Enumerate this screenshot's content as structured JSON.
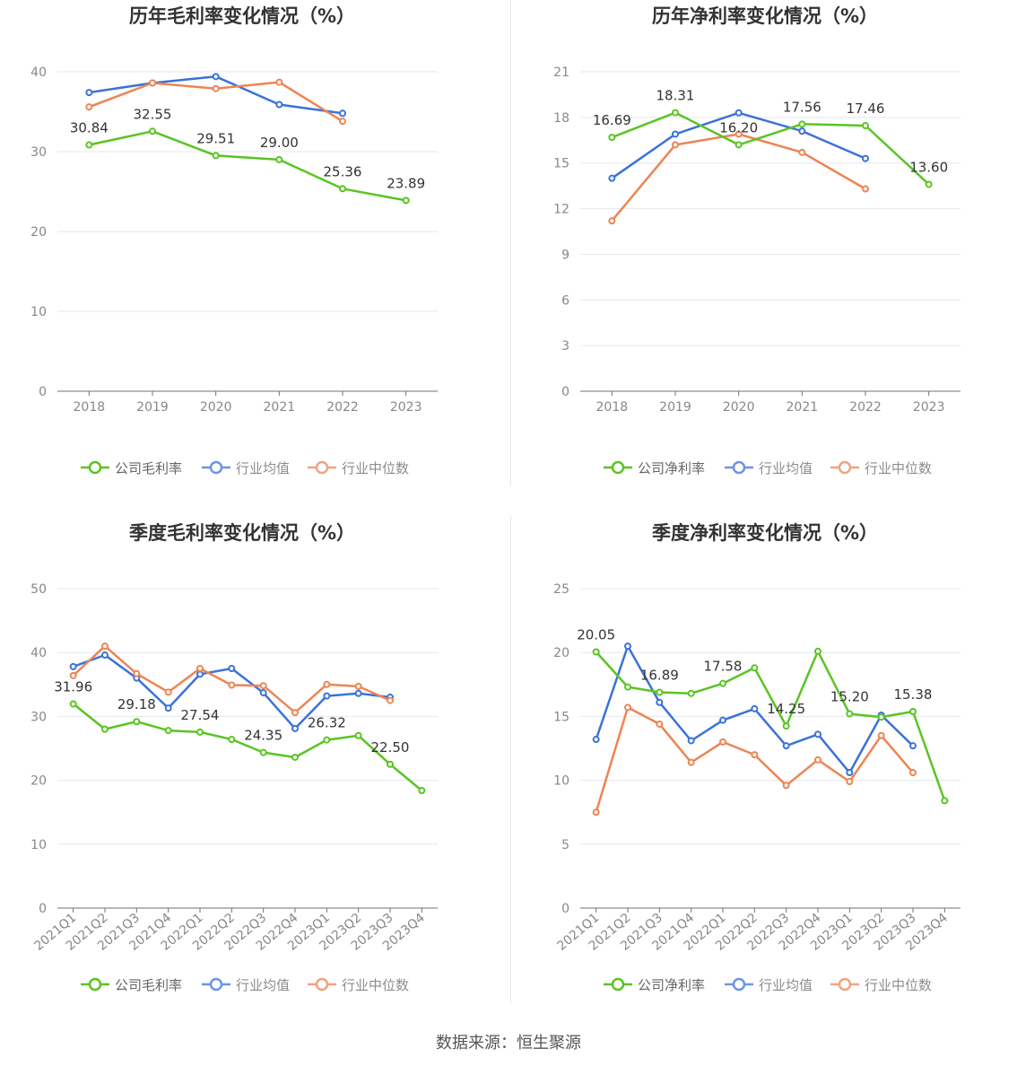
{
  "source": "数据来源：恒生聚源",
  "colors": {
    "company": "#5ac423",
    "avg": "#3b72d9",
    "median": "#ee8454"
  },
  "chart_data": [
    {
      "id": "annual-gross",
      "type": "line",
      "title": "历年毛利率变化情况（%）",
      "categories": [
        "2018",
        "2019",
        "2020",
        "2021",
        "2022",
        "2023"
      ],
      "yticks": [
        0,
        10,
        20,
        30,
        40
      ],
      "ylim": [
        0,
        40
      ],
      "xlabel_rotate": false,
      "series": [
        {
          "name": "公司毛利率",
          "key": "company",
          "values": [
            30.84,
            32.55,
            29.51,
            29.0,
            25.36,
            23.89
          ]
        },
        {
          "name": "行业均值",
          "key": "avg",
          "values": [
            37.4,
            38.6,
            39.4,
            35.9,
            34.8,
            null
          ]
        },
        {
          "name": "行业中位数",
          "key": "median",
          "values": [
            35.6,
            38.6,
            37.9,
            38.7,
            33.8,
            null
          ]
        }
      ],
      "labels": [
        {
          "i": 0,
          "text": "30.84"
        },
        {
          "i": 1,
          "text": "32.55"
        },
        {
          "i": 2,
          "text": "29.51"
        },
        {
          "i": 3,
          "text": "29.00"
        },
        {
          "i": 4,
          "text": "25.36"
        },
        {
          "i": 5,
          "text": "23.89"
        }
      ]
    },
    {
      "id": "annual-net",
      "type": "line",
      "title": "历年净利率变化情况（%）",
      "categories": [
        "2018",
        "2019",
        "2020",
        "2021",
        "2022",
        "2023"
      ],
      "yticks": [
        0,
        3,
        6,
        9,
        12,
        15,
        18,
        21
      ],
      "ylim": [
        0,
        21
      ],
      "xlabel_rotate": false,
      "series": [
        {
          "name": "公司净利率",
          "key": "company",
          "values": [
            16.69,
            18.31,
            16.2,
            17.56,
            17.46,
            13.6
          ]
        },
        {
          "name": "行业均值",
          "key": "avg",
          "values": [
            14.0,
            16.9,
            18.3,
            17.1,
            15.3,
            null
          ]
        },
        {
          "name": "行业中位数",
          "key": "median",
          "values": [
            11.2,
            16.2,
            16.9,
            15.7,
            13.3,
            null
          ]
        }
      ],
      "labels": [
        {
          "i": 0,
          "text": "16.69"
        },
        {
          "i": 1,
          "text": "18.31"
        },
        {
          "i": 2,
          "text": "16.20"
        },
        {
          "i": 3,
          "text": "17.56"
        },
        {
          "i": 4,
          "text": "17.46"
        },
        {
          "i": 5,
          "text": "13.60"
        }
      ]
    },
    {
      "id": "quarter-gross",
      "type": "line",
      "title": "季度毛利率变化情况（%）",
      "categories": [
        "2021Q1",
        "2021Q2",
        "2021Q3",
        "2021Q4",
        "2022Q1",
        "2022Q2",
        "2022Q3",
        "2022Q4",
        "2023Q1",
        "2023Q2",
        "2023Q3",
        "2023Q4"
      ],
      "yticks": [
        0,
        10,
        20,
        30,
        40,
        50
      ],
      "ylim": [
        0,
        50
      ],
      "xlabel_rotate": true,
      "series": [
        {
          "name": "公司毛利率",
          "key": "company",
          "values": [
            31.96,
            28.0,
            29.18,
            27.8,
            27.54,
            26.4,
            24.35,
            23.6,
            26.32,
            27.0,
            22.5,
            18.4
          ]
        },
        {
          "name": "行业均值",
          "key": "avg",
          "values": [
            37.8,
            39.6,
            36.0,
            31.3,
            36.6,
            37.5,
            33.7,
            28.1,
            33.2,
            33.6,
            33.0,
            null
          ]
        },
        {
          "name": "行业中位数",
          "key": "median",
          "values": [
            36.4,
            41.0,
            36.7,
            33.8,
            37.5,
            34.9,
            34.8,
            30.6,
            35.0,
            34.7,
            32.5,
            null
          ]
        }
      ],
      "labels": [
        {
          "i": 0,
          "text": "31.96"
        },
        {
          "i": 2,
          "text": "29.18"
        },
        {
          "i": 4,
          "text": "27.54"
        },
        {
          "i": 6,
          "text": "24.35"
        },
        {
          "i": 8,
          "text": "26.32"
        },
        {
          "i": 10,
          "text": "22.50"
        }
      ]
    },
    {
      "id": "quarter-net",
      "type": "line",
      "title": "季度净利率变化情况（%）",
      "categories": [
        "2021Q1",
        "2021Q2",
        "2021Q3",
        "2021Q4",
        "2022Q1",
        "2022Q2",
        "2022Q3",
        "2022Q4",
        "2023Q1",
        "2023Q2",
        "2023Q3",
        "2023Q4"
      ],
      "yticks": [
        0,
        5,
        10,
        15,
        20,
        25
      ],
      "ylim": [
        0,
        25
      ],
      "xlabel_rotate": true,
      "series": [
        {
          "name": "公司净利率",
          "key": "company",
          "values": [
            20.05,
            17.3,
            16.89,
            16.8,
            17.58,
            18.8,
            14.25,
            20.1,
            15.2,
            14.95,
            15.38,
            8.4
          ]
        },
        {
          "name": "行业均值",
          "key": "avg",
          "values": [
            13.2,
            20.5,
            16.1,
            13.1,
            14.7,
            15.6,
            12.7,
            13.6,
            10.6,
            15.1,
            12.7,
            null
          ]
        },
        {
          "name": "行业中位数",
          "key": "median",
          "values": [
            7.5,
            15.7,
            14.4,
            11.4,
            13.0,
            12.0,
            9.6,
            11.6,
            9.9,
            13.5,
            10.6,
            null
          ]
        }
      ],
      "labels": [
        {
          "i": 0,
          "text": "20.05"
        },
        {
          "i": 2,
          "text": "16.89"
        },
        {
          "i": 4,
          "text": "17.58"
        },
        {
          "i": 6,
          "text": "14.25"
        },
        {
          "i": 8,
          "text": "15.20"
        },
        {
          "i": 10,
          "text": "15.38"
        }
      ]
    }
  ]
}
